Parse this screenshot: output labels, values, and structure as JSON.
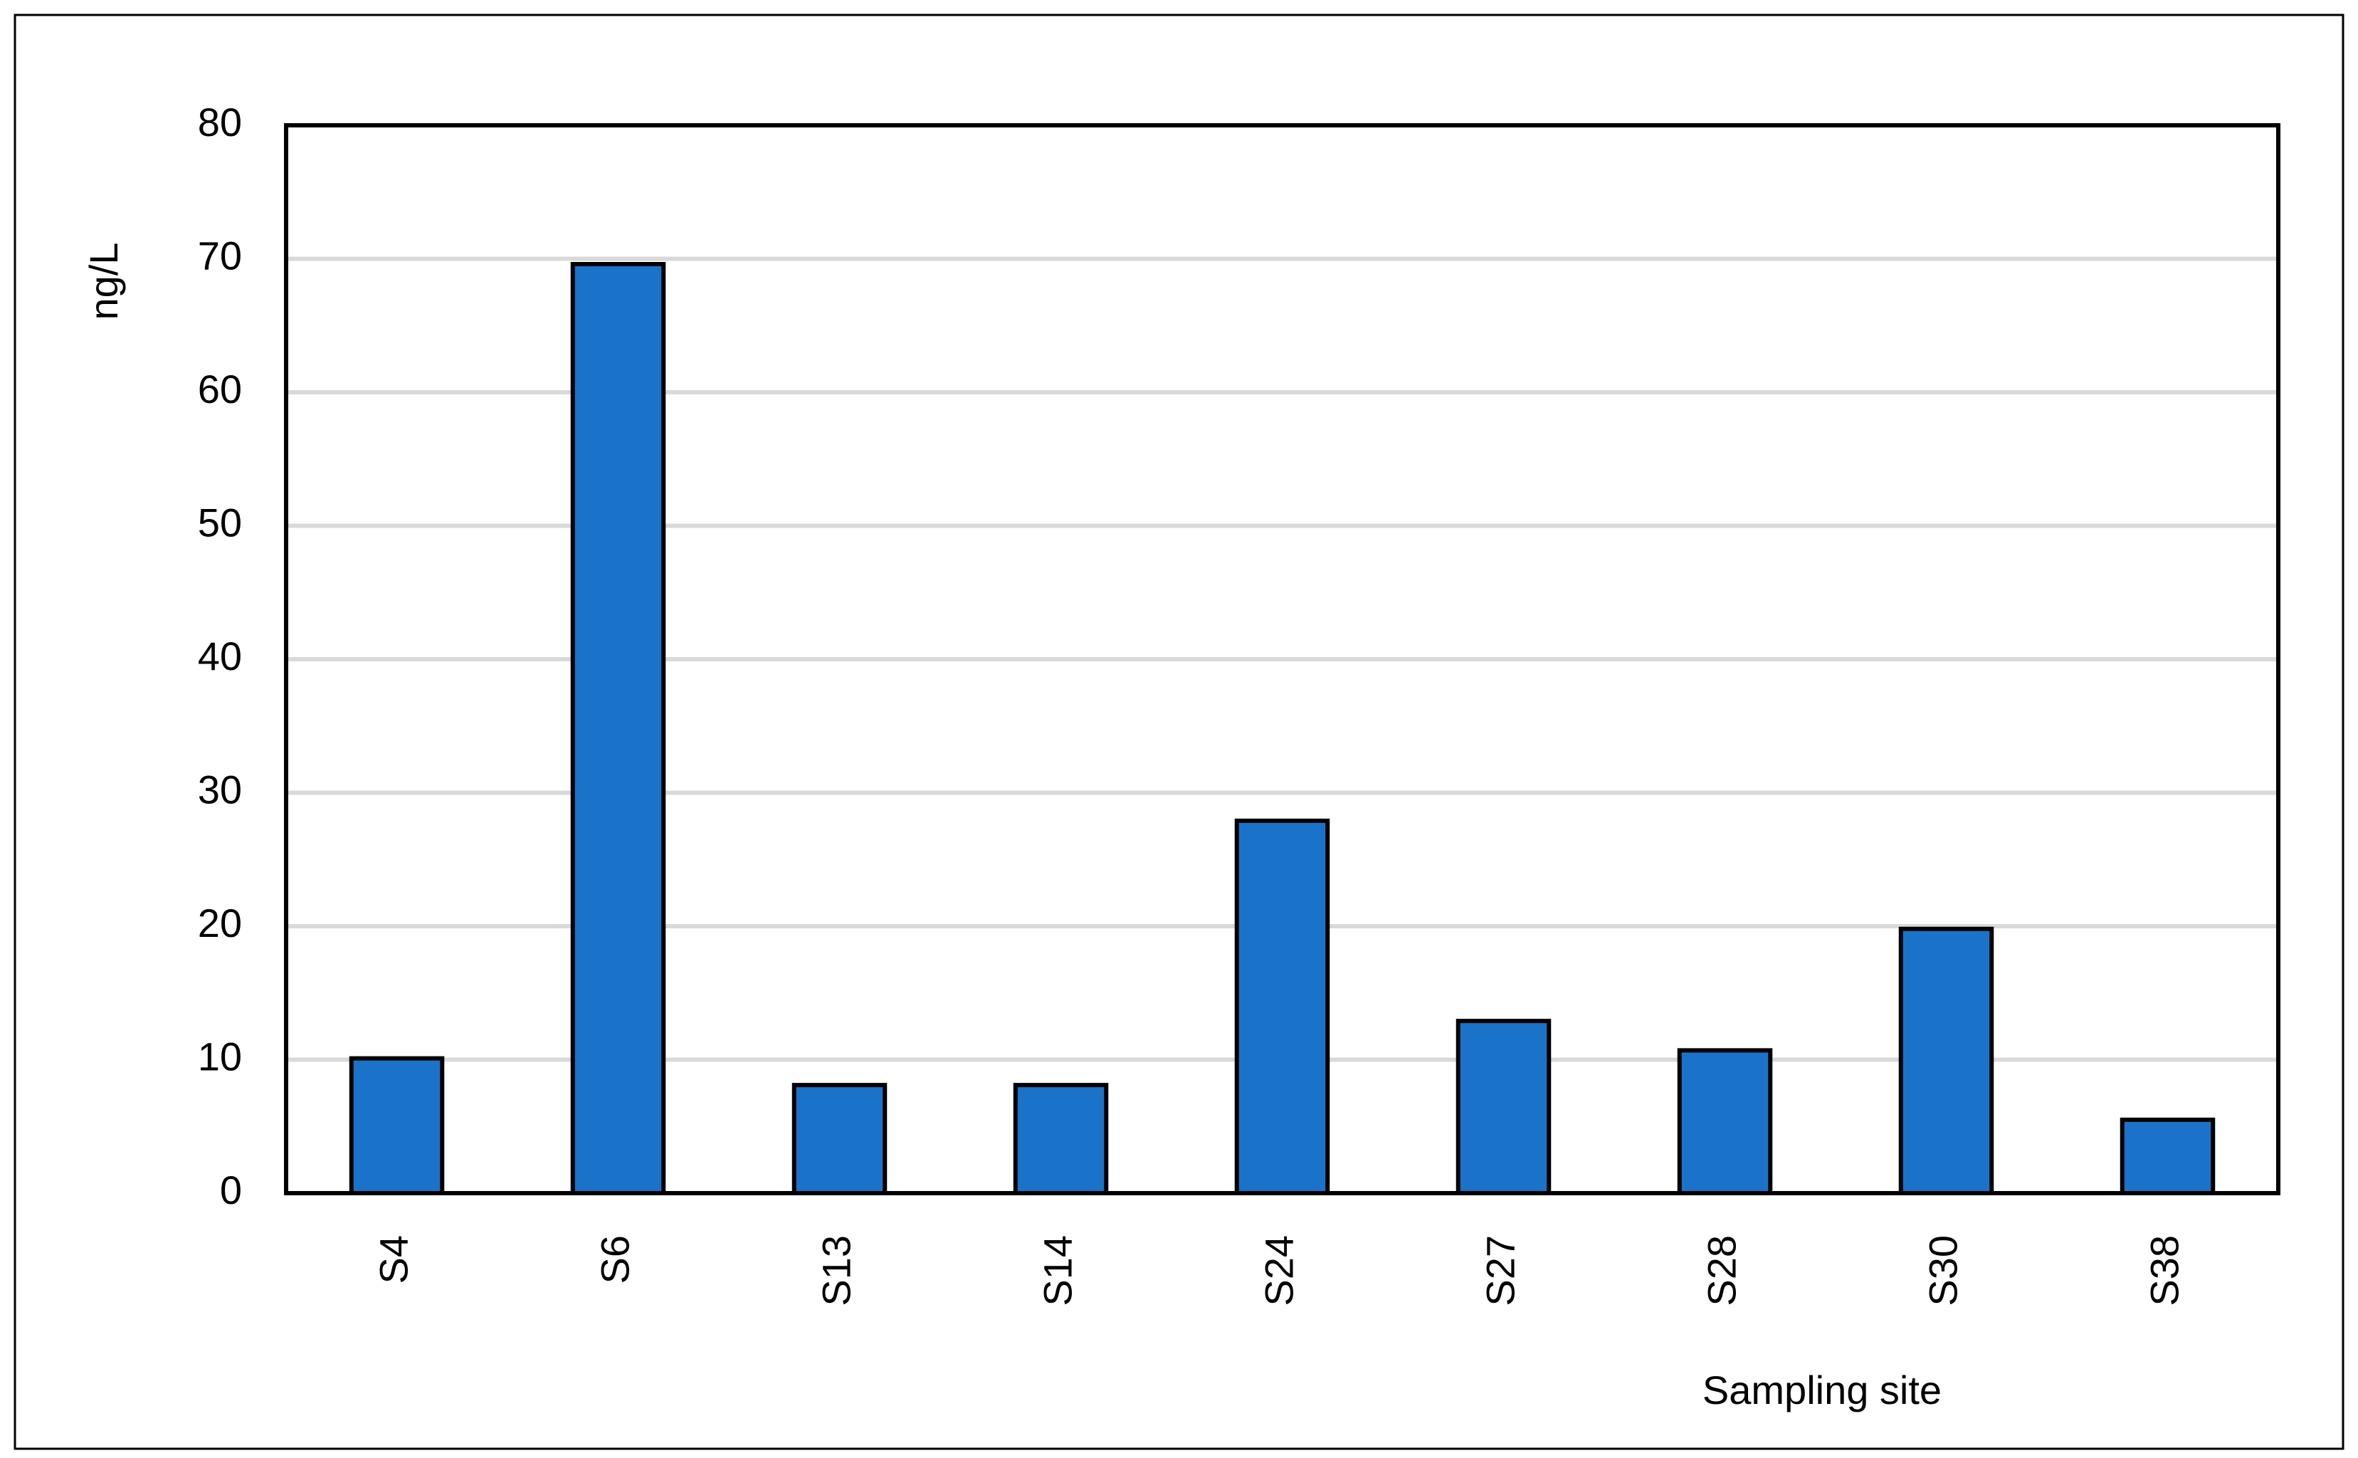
{
  "chart_data": {
    "type": "bar",
    "y_label": "ng/L",
    "x_label": "Sampling site",
    "categories": [
      "S4",
      "S6",
      "S13",
      "S14",
      "S24",
      "S27",
      "S28",
      "S30",
      "S38"
    ],
    "values": [
      10.1,
      69.6,
      8.1,
      8.1,
      27.9,
      12.9,
      10.7,
      19.8,
      5.5
    ],
    "color": "#1a73c8",
    "ylim": [
      0,
      80
    ],
    "yticks": [
      0,
      10,
      20,
      30,
      40,
      50,
      60,
      70,
      80
    ],
    "grid": true
  }
}
